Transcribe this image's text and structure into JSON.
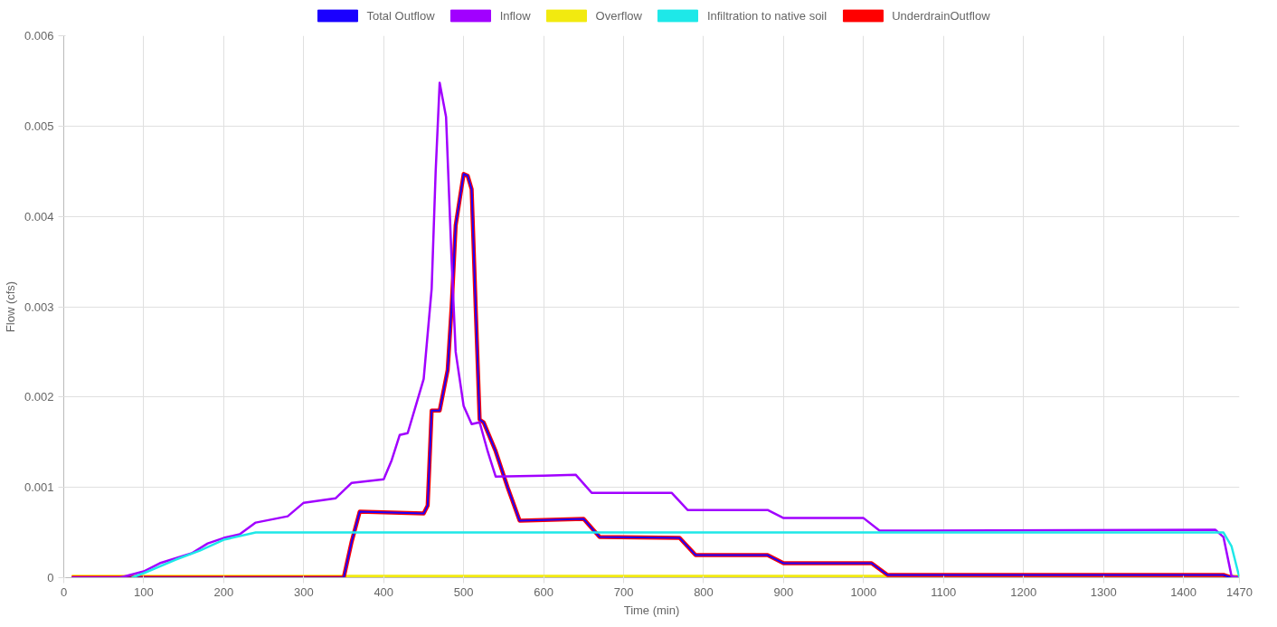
{
  "chart_data": {
    "type": "line",
    "xlabel": "Time (min)",
    "ylabel": "Flow (cfs)",
    "xlim": [
      0,
      1470
    ],
    "ylim": [
      0,
      0.006
    ],
    "xticks": [
      0,
      100,
      200,
      300,
      400,
      500,
      600,
      700,
      800,
      900,
      1000,
      1100,
      1200,
      1300,
      1400,
      1470
    ],
    "yticks": [
      0,
      0.001,
      0.002,
      0.003,
      0.004,
      0.005,
      0.006
    ],
    "grid": true,
    "legend": "top",
    "marker": "none",
    "line_style": "solid",
    "series": [
      {
        "name": "Total Outflow",
        "color": "#1a00ff",
        "x": [
          10,
          350,
          360,
          370,
          450,
          455,
          460,
          470,
          480,
          485,
          490,
          500,
          505,
          510,
          515,
          520,
          525,
          540,
          555,
          570,
          650,
          670,
          770,
          790,
          880,
          900,
          1010,
          1030,
          1450,
          1460,
          1470
        ],
        "values": [
          0,
          0,
          0.0004,
          0.00073,
          0.00071,
          0.0008,
          0.00185,
          0.00185,
          0.0023,
          0.003,
          0.0039,
          0.00447,
          0.00445,
          0.0043,
          0.003,
          0.00175,
          0.00172,
          0.0014,
          0.001,
          0.00063,
          0.00065,
          0.00045,
          0.00044,
          0.00025,
          0.00025,
          0.00016,
          0.00016,
          3e-05,
          3e-05,
          0,
          0
        ]
      },
      {
        "name": "Inflow",
        "color": "#a100ff",
        "x": [
          10,
          70,
          100,
          120,
          160,
          180,
          200,
          220,
          240,
          280,
          300,
          340,
          360,
          400,
          410,
          420,
          430,
          440,
          450,
          460,
          465,
          470,
          478,
          485,
          490,
          500,
          510,
          520,
          530,
          540,
          600,
          640,
          660,
          760,
          780,
          880,
          900,
          1000,
          1020,
          1440,
          1450,
          1460,
          1470
        ],
        "values": [
          0,
          0,
          7e-05,
          0.00016,
          0.00027,
          0.00038,
          0.00044,
          0.00048,
          0.00061,
          0.00068,
          0.00083,
          0.00088,
          0.00105,
          0.00109,
          0.0013,
          0.00158,
          0.0016,
          0.0019,
          0.0022,
          0.0032,
          0.0045,
          0.00548,
          0.0051,
          0.0035,
          0.0025,
          0.0019,
          0.0017,
          0.00172,
          0.0014,
          0.00112,
          0.00113,
          0.00114,
          0.00094,
          0.00094,
          0.00075,
          0.00075,
          0.00066,
          0.00066,
          0.00052,
          0.00053,
          0.00045,
          2e-05,
          0
        ]
      },
      {
        "name": "Overflow",
        "color": "#f2ea0f",
        "x": [
          10,
          1470
        ],
        "values": [
          0,
          0
        ]
      },
      {
        "name": "Infiltration to native soil",
        "color": "#1ee8e8",
        "x": [
          85,
          100,
          140,
          170,
          200,
          240,
          1450,
          1460,
          1470
        ],
        "values": [
          0,
          5e-05,
          0.0002,
          0.0003,
          0.00042,
          0.0005,
          0.0005,
          0.00035,
          0
        ]
      },
      {
        "name": "UnderdrainOutflow",
        "color": "#ff0000",
        "x": [
          10,
          350,
          360,
          370,
          450,
          455,
          460,
          470,
          480,
          485,
          490,
          500,
          505,
          510,
          515,
          520,
          525,
          540,
          555,
          570,
          650,
          670,
          770,
          790,
          880,
          900,
          1010,
          1030,
          1450,
          1460,
          1470
        ],
        "values": [
          0,
          0,
          0.0004,
          0.00073,
          0.00071,
          0.0008,
          0.00185,
          0.00185,
          0.0023,
          0.003,
          0.0039,
          0.00447,
          0.00445,
          0.0043,
          0.003,
          0.00175,
          0.00172,
          0.0014,
          0.001,
          0.00063,
          0.00065,
          0.00045,
          0.00044,
          0.00025,
          0.00025,
          0.00016,
          0.00016,
          3e-05,
          3e-05,
          0,
          0
        ]
      }
    ]
  }
}
